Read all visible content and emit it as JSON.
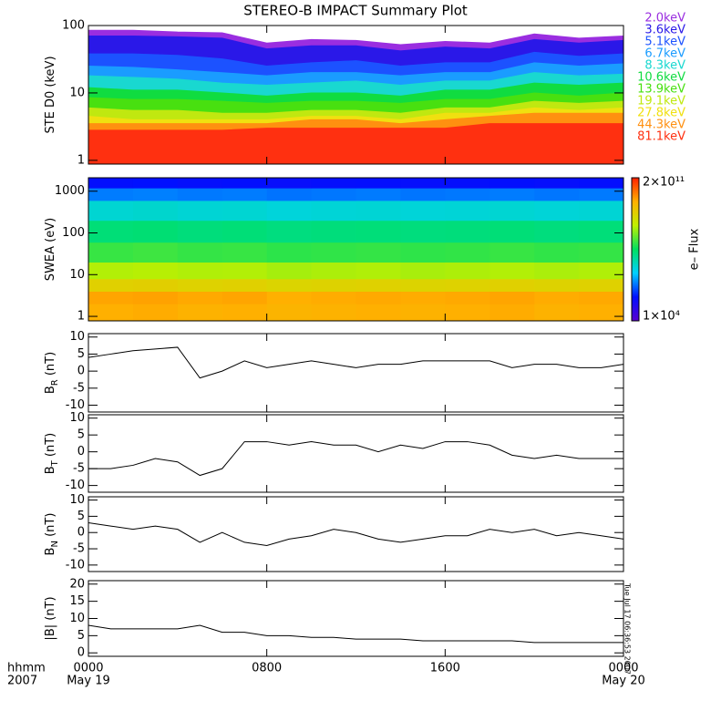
{
  "title": "STEREO-B IMPACT Summary Plot",
  "timestamp": "Tue Jul 17 06:36:53 2007",
  "x_axis": {
    "xlim": [
      0,
      24
    ],
    "xticks": [
      {
        "value": 0,
        "label": "0000"
      },
      {
        "value": 8,
        "label": "0800"
      },
      {
        "value": 16,
        "label": "1600"
      },
      {
        "value": 24,
        "label": "0000"
      }
    ],
    "date_labels": [
      {
        "value": 0,
        "label": "May 19"
      },
      {
        "value": 24,
        "label": "May 20"
      }
    ],
    "row_labels": [
      "hhmm",
      "2007"
    ]
  },
  "chart_data": [
    {
      "type": "area",
      "ylabel": "STE D0 (keV)",
      "log": true,
      "ylim": [
        0.88,
        100
      ],
      "yticks": [
        1,
        10,
        100
      ],
      "x": [
        0,
        2,
        4,
        6,
        8,
        10,
        12,
        14,
        16,
        18,
        20,
        22,
        24
      ],
      "series": [
        {
          "name": "2.0keV",
          "color": "#9a2ee0",
          "values": [
            85,
            85,
            80,
            78,
            55,
            62,
            60,
            52,
            58,
            55,
            75,
            65,
            70
          ]
        },
        {
          "name": "3.6keV",
          "color": "#2a18e8",
          "values": [
            70,
            70,
            68,
            65,
            45,
            50,
            50,
            42,
            48,
            45,
            62,
            55,
            60
          ]
        },
        {
          "name": "5.1keV",
          "color": "#1c52ff",
          "values": [
            38,
            38,
            36,
            32,
            25,
            28,
            30,
            25,
            28,
            28,
            40,
            35,
            38
          ]
        },
        {
          "name": "6.7keV",
          "color": "#1a9cff",
          "values": [
            25,
            24,
            22,
            20,
            18,
            20,
            20,
            18,
            20,
            20,
            28,
            25,
            27
          ]
        },
        {
          "name": "8.3keV",
          "color": "#19d8d0",
          "values": [
            18,
            17,
            16,
            14,
            13,
            14,
            15,
            13,
            15,
            15,
            20,
            18,
            19
          ]
        },
        {
          "name": "10.6keV",
          "color": "#10dc40",
          "values": [
            12,
            11,
            11,
            10,
            9,
            10,
            10,
            9,
            11,
            11,
            14,
            13,
            14
          ]
        },
        {
          "name": "13.9keV",
          "color": "#48e010",
          "values": [
            8.5,
            8,
            8,
            7.5,
            7,
            7.5,
            7.5,
            7,
            8,
            8,
            10,
            9,
            10
          ]
        },
        {
          "name": "19.1keV",
          "color": "#c0e810",
          "values": [
            6,
            5.5,
            5.5,
            5,
            5,
            5.5,
            5.5,
            5,
            6,
            6,
            7.5,
            7,
            7.5
          ]
        },
        {
          "name": "27.8keV",
          "color": "#f0e010",
          "values": [
            4.5,
            4,
            4,
            4,
            4,
            4.5,
            4.5,
            4,
            5,
            5,
            6,
            5.5,
            6
          ]
        },
        {
          "name": "44.3keV",
          "color": "#ff9010",
          "values": [
            3.5,
            3.5,
            3.5,
            3.5,
            3.5,
            4,
            4,
            3.5,
            4,
            4.5,
            5,
            5,
            5
          ]
        },
        {
          "name": "81.1keV",
          "color": "#ff3010",
          "values": [
            2.8,
            2.8,
            2.8,
            2.8,
            3,
            3,
            3,
            3,
            3,
            3.5,
            3.5,
            3.5,
            3.5
          ]
        }
      ]
    },
    {
      "type": "spectrogram",
      "ylabel": "SWEA (eV)",
      "zlabel": "e– Flux",
      "log": true,
      "ylim": [
        0.78,
        2100
      ],
      "yticks": [
        1,
        10,
        100,
        1000
      ],
      "xbins": [
        0,
        2,
        4,
        6,
        8,
        10,
        12,
        14,
        16,
        18,
        20,
        22,
        24
      ],
      "ybins": [
        0.78,
        2,
        4,
        8,
        20,
        60,
        200,
        600,
        1200,
        2100
      ],
      "zlim": [
        10000,
        200000000000
      ],
      "zticks": [
        {
          "value": 10000,
          "label": "1×10⁴"
        },
        {
          "value": 200000000000,
          "label": "2×10¹¹"
        }
      ],
      "colormap": [
        "#5a00d0",
        "#0010ff",
        "#00d0ff",
        "#00e060",
        "#c0f000",
        "#ffb000",
        "#ff2000"
      ],
      "values": [
        [
          12000000000,
          13000000000,
          11000000000,
          12000000000,
          10000000000,
          11000000000,
          12000000000,
          11000000000,
          12000000000,
          13000000000,
          11000000000,
          12000000000
        ],
        [
          15000000000,
          16000000000,
          14000000000,
          15000000000,
          12000000000,
          13000000000,
          14000000000,
          13000000000,
          14000000000,
          15000000000,
          13000000000,
          14000000000
        ],
        [
          3000000000,
          3200000000,
          2800000000,
          3000000000,
          2500000000,
          2700000000,
          2900000000,
          2600000000,
          2800000000,
          3000000000,
          2700000000,
          2900000000
        ],
        [
          600000000,
          650000000,
          580000000,
          600000000,
          500000000,
          550000000,
          580000000,
          520000000,
          560000000,
          600000000,
          540000000,
          580000000
        ],
        [
          100000000,
          110000000,
          95000000,
          100000000,
          85000000,
          90000000,
          95000000,
          88000000,
          92000000,
          100000000,
          90000000,
          95000000
        ],
        [
          30000000,
          32000000,
          28000000,
          30000000,
          26000000,
          28000000,
          29000000,
          27000000,
          28000000,
          30000000,
          27000000,
          29000000
        ],
        [
          6000000,
          6500000,
          5800000,
          6000000,
          5200000,
          5600000,
          5800000,
          5400000,
          5600000,
          6000000,
          5500000,
          5800000
        ],
        [
          800000,
          850000,
          760000,
          800000,
          700000,
          740000,
          780000,
          720000,
          750000,
          800000,
          730000,
          770000
        ],
        [
          150000,
          160000,
          140000,
          150000,
          130000,
          140000,
          145000,
          135000,
          140000,
          150000,
          138000,
          145000
        ]
      ]
    },
    {
      "type": "line",
      "ylabel": "B",
      "ylabel_sub": "R",
      "ylabel_unit": " (nT)",
      "ylim": [
        -12,
        11
      ],
      "yticks": [
        -10,
        -5,
        0,
        5,
        10
      ],
      "x": [
        0,
        1,
        2,
        3,
        4,
        5,
        6,
        7,
        8,
        9,
        10,
        11,
        12,
        13,
        14,
        15,
        16,
        17,
        18,
        19,
        20,
        21,
        22,
        23,
        24
      ],
      "values": [
        4,
        5,
        6,
        6.5,
        7,
        -2,
        0,
        3,
        1,
        2,
        3,
        2,
        1,
        2,
        2,
        3,
        3,
        3,
        3,
        1,
        2,
        2,
        1,
        1,
        2
      ]
    },
    {
      "type": "line",
      "ylabel": "B",
      "ylabel_sub": "T",
      "ylabel_unit": " (nT)",
      "ylim": [
        -12,
        11
      ],
      "yticks": [
        -10,
        -5,
        0,
        5,
        10
      ],
      "x": [
        0,
        1,
        2,
        3,
        4,
        5,
        6,
        7,
        8,
        9,
        10,
        11,
        12,
        13,
        14,
        15,
        16,
        17,
        18,
        19,
        20,
        21,
        22,
        23,
        24
      ],
      "values": [
        -5,
        -5,
        -4,
        -2,
        -3,
        -7,
        -5,
        3,
        3,
        2,
        3,
        2,
        2,
        0,
        2,
        1,
        3,
        3,
        2,
        -1,
        -2,
        -1,
        -2,
        -2,
        -2
      ]
    },
    {
      "type": "line",
      "ylabel": "B",
      "ylabel_sub": "N",
      "ylabel_unit": " (nT)",
      "ylim": [
        -12,
        11
      ],
      "yticks": [
        -10,
        -5,
        0,
        5,
        10
      ],
      "x": [
        0,
        1,
        2,
        3,
        4,
        5,
        6,
        7,
        8,
        9,
        10,
        11,
        12,
        13,
        14,
        15,
        16,
        17,
        18,
        19,
        20,
        21,
        22,
        23,
        24
      ],
      "values": [
        3,
        2,
        1,
        2,
        1,
        -3,
        0,
        -3,
        -4,
        -2,
        -1,
        1,
        0,
        -2,
        -3,
        -2,
        -1,
        -1,
        1,
        0,
        1,
        -1,
        0,
        -1,
        -2
      ]
    },
    {
      "type": "line",
      "ylabel": "|B| (nT)",
      "ylim": [
        -1,
        21
      ],
      "yticks": [
        0,
        5,
        10,
        15,
        20
      ],
      "x": [
        0,
        1,
        2,
        3,
        4,
        5,
        6,
        7,
        8,
        9,
        10,
        11,
        12,
        13,
        14,
        15,
        16,
        17,
        18,
        19,
        20,
        21,
        22,
        23,
        24
      ],
      "values": [
        8,
        7,
        7,
        7,
        7,
        8,
        6,
        6,
        5,
        5,
        4.5,
        4.5,
        4,
        4,
        4,
        3.5,
        3.5,
        3.5,
        3.5,
        3.5,
        3,
        3,
        3,
        3,
        3
      ]
    }
  ]
}
